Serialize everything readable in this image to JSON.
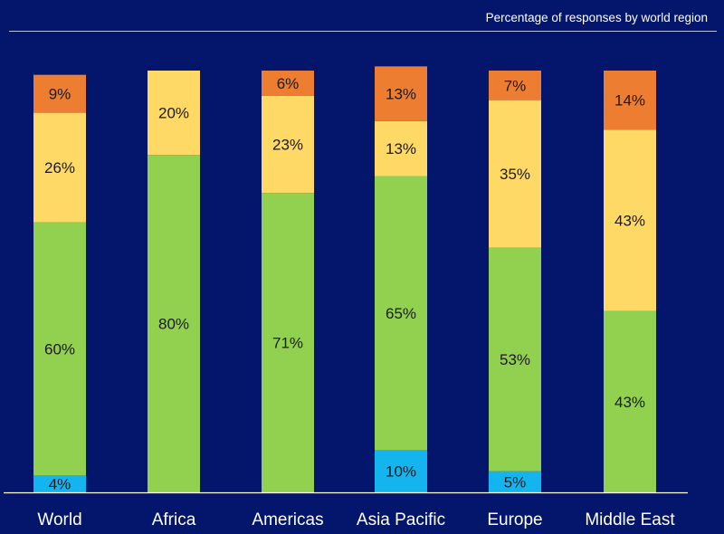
{
  "chart_data": {
    "type": "bar",
    "stacked": true,
    "title": "Percentage of responses  by world region",
    "categories": [
      "World",
      "Africa",
      "Americas",
      "Asia Pacific",
      "Europe",
      "Middle East"
    ],
    "series": [
      {
        "name": "blue",
        "color": "#14b4ee",
        "values": [
          4,
          0,
          0,
          10,
          5,
          0
        ],
        "labels": [
          "4%",
          "",
          "",
          "10%",
          "5%",
          ""
        ]
      },
      {
        "name": "green",
        "color": "#92d050",
        "values": [
          60,
          80,
          71,
          65,
          53,
          43
        ],
        "labels": [
          "60%",
          "80%",
          "71%",
          "65%",
          "53%",
          "43%"
        ]
      },
      {
        "name": "yellow",
        "color": "#ffd966",
        "values": [
          26,
          20,
          23,
          13,
          35,
          43
        ],
        "labels": [
          "26%",
          "20%",
          "23%",
          "13%",
          "35%",
          "43%"
        ]
      },
      {
        "name": "orange",
        "color": "#ed7d31",
        "values": [
          9,
          0,
          6,
          13,
          7,
          14
        ],
        "labels": [
          "9%",
          "",
          "6%",
          "13%",
          "7%",
          "14%"
        ]
      }
    ],
    "ylim": [
      0,
      100
    ],
    "xlabel": "",
    "ylabel": "",
    "legend": "none",
    "grid": false
  }
}
